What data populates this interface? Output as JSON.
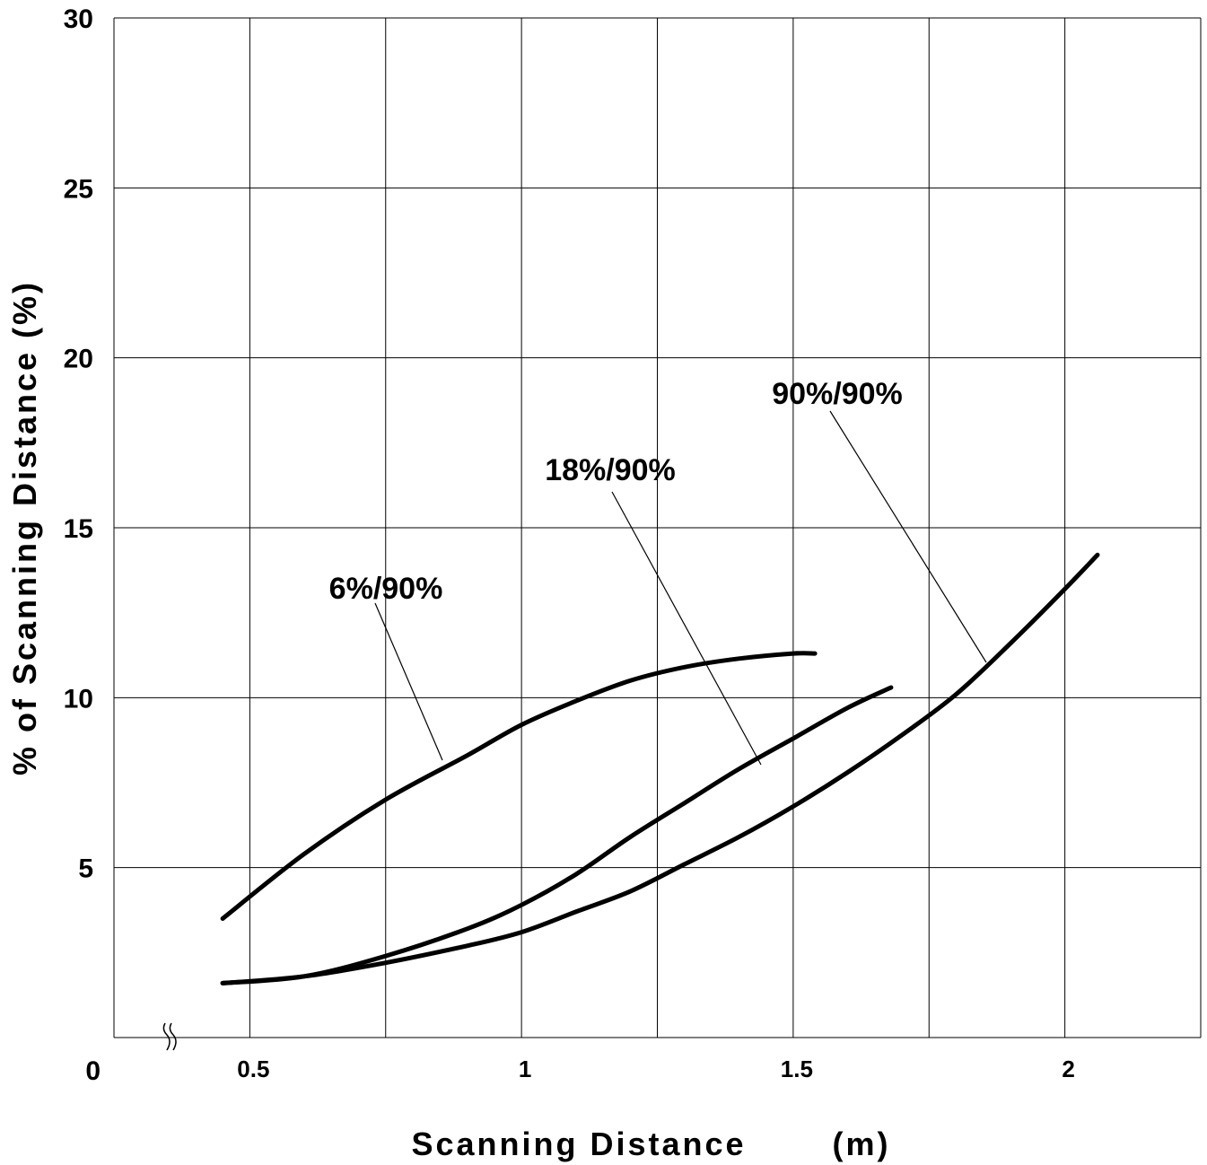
{
  "chart_data": {
    "type": "line",
    "title": "",
    "xlabel": "Scanning Distance",
    "xunit": "(m)",
    "ylabel": "% of Scanning Distance (%)",
    "xlim": [
      0.25,
      2.25
    ],
    "ylim": [
      0,
      30
    ],
    "x_ticks": [
      {
        "value": 0.5,
        "label": "0.5"
      },
      {
        "value": 1,
        "label": "1"
      },
      {
        "value": 1.5,
        "label": "1.5"
      },
      {
        "value": 2,
        "label": "2"
      }
    ],
    "y_ticks": [
      {
        "value": 0,
        "label": "0"
      },
      {
        "value": 5,
        "label": "5"
      },
      {
        "value": 10,
        "label": "10"
      },
      {
        "value": 15,
        "label": "15"
      },
      {
        "value": 20,
        "label": "20"
      },
      {
        "value": 25,
        "label": "25"
      },
      {
        "value": 30,
        "label": "30"
      }
    ],
    "grid": true,
    "axis_break": "x",
    "series": [
      {
        "name": "6%/90%",
        "x": [
          0.45,
          0.6,
          0.75,
          0.9,
          1.0,
          1.1,
          1.2,
          1.3,
          1.4,
          1.5,
          1.54
        ],
        "y": [
          3.5,
          5.4,
          7.0,
          8.3,
          9.2,
          9.9,
          10.5,
          10.9,
          11.15,
          11.3,
          11.3
        ]
      },
      {
        "name": "18%/90%",
        "x": [
          0.45,
          0.6,
          0.75,
          0.9,
          1.0,
          1.1,
          1.2,
          1.3,
          1.4,
          1.5,
          1.6,
          1.68
        ],
        "y": [
          1.6,
          1.8,
          2.4,
          3.2,
          3.9,
          4.8,
          5.9,
          6.9,
          7.9,
          8.8,
          9.7,
          10.3
        ]
      },
      {
        "name": "90%/90%",
        "x": [
          0.45,
          0.6,
          0.75,
          0.9,
          1.0,
          1.1,
          1.2,
          1.3,
          1.4,
          1.5,
          1.6,
          1.7,
          1.8,
          1.9,
          2.0,
          2.06
        ],
        "y": [
          1.6,
          1.8,
          2.2,
          2.7,
          3.1,
          3.7,
          4.3,
          5.1,
          5.9,
          6.8,
          7.8,
          8.9,
          10.1,
          11.6,
          13.2,
          14.2
        ]
      }
    ],
    "annotations": [
      {
        "series": "6%/90%",
        "text": "6%/90%"
      },
      {
        "series": "18%/90%",
        "text": "18%/90%"
      },
      {
        "series": "90%/90%",
        "text": "90%/90%"
      }
    ]
  }
}
